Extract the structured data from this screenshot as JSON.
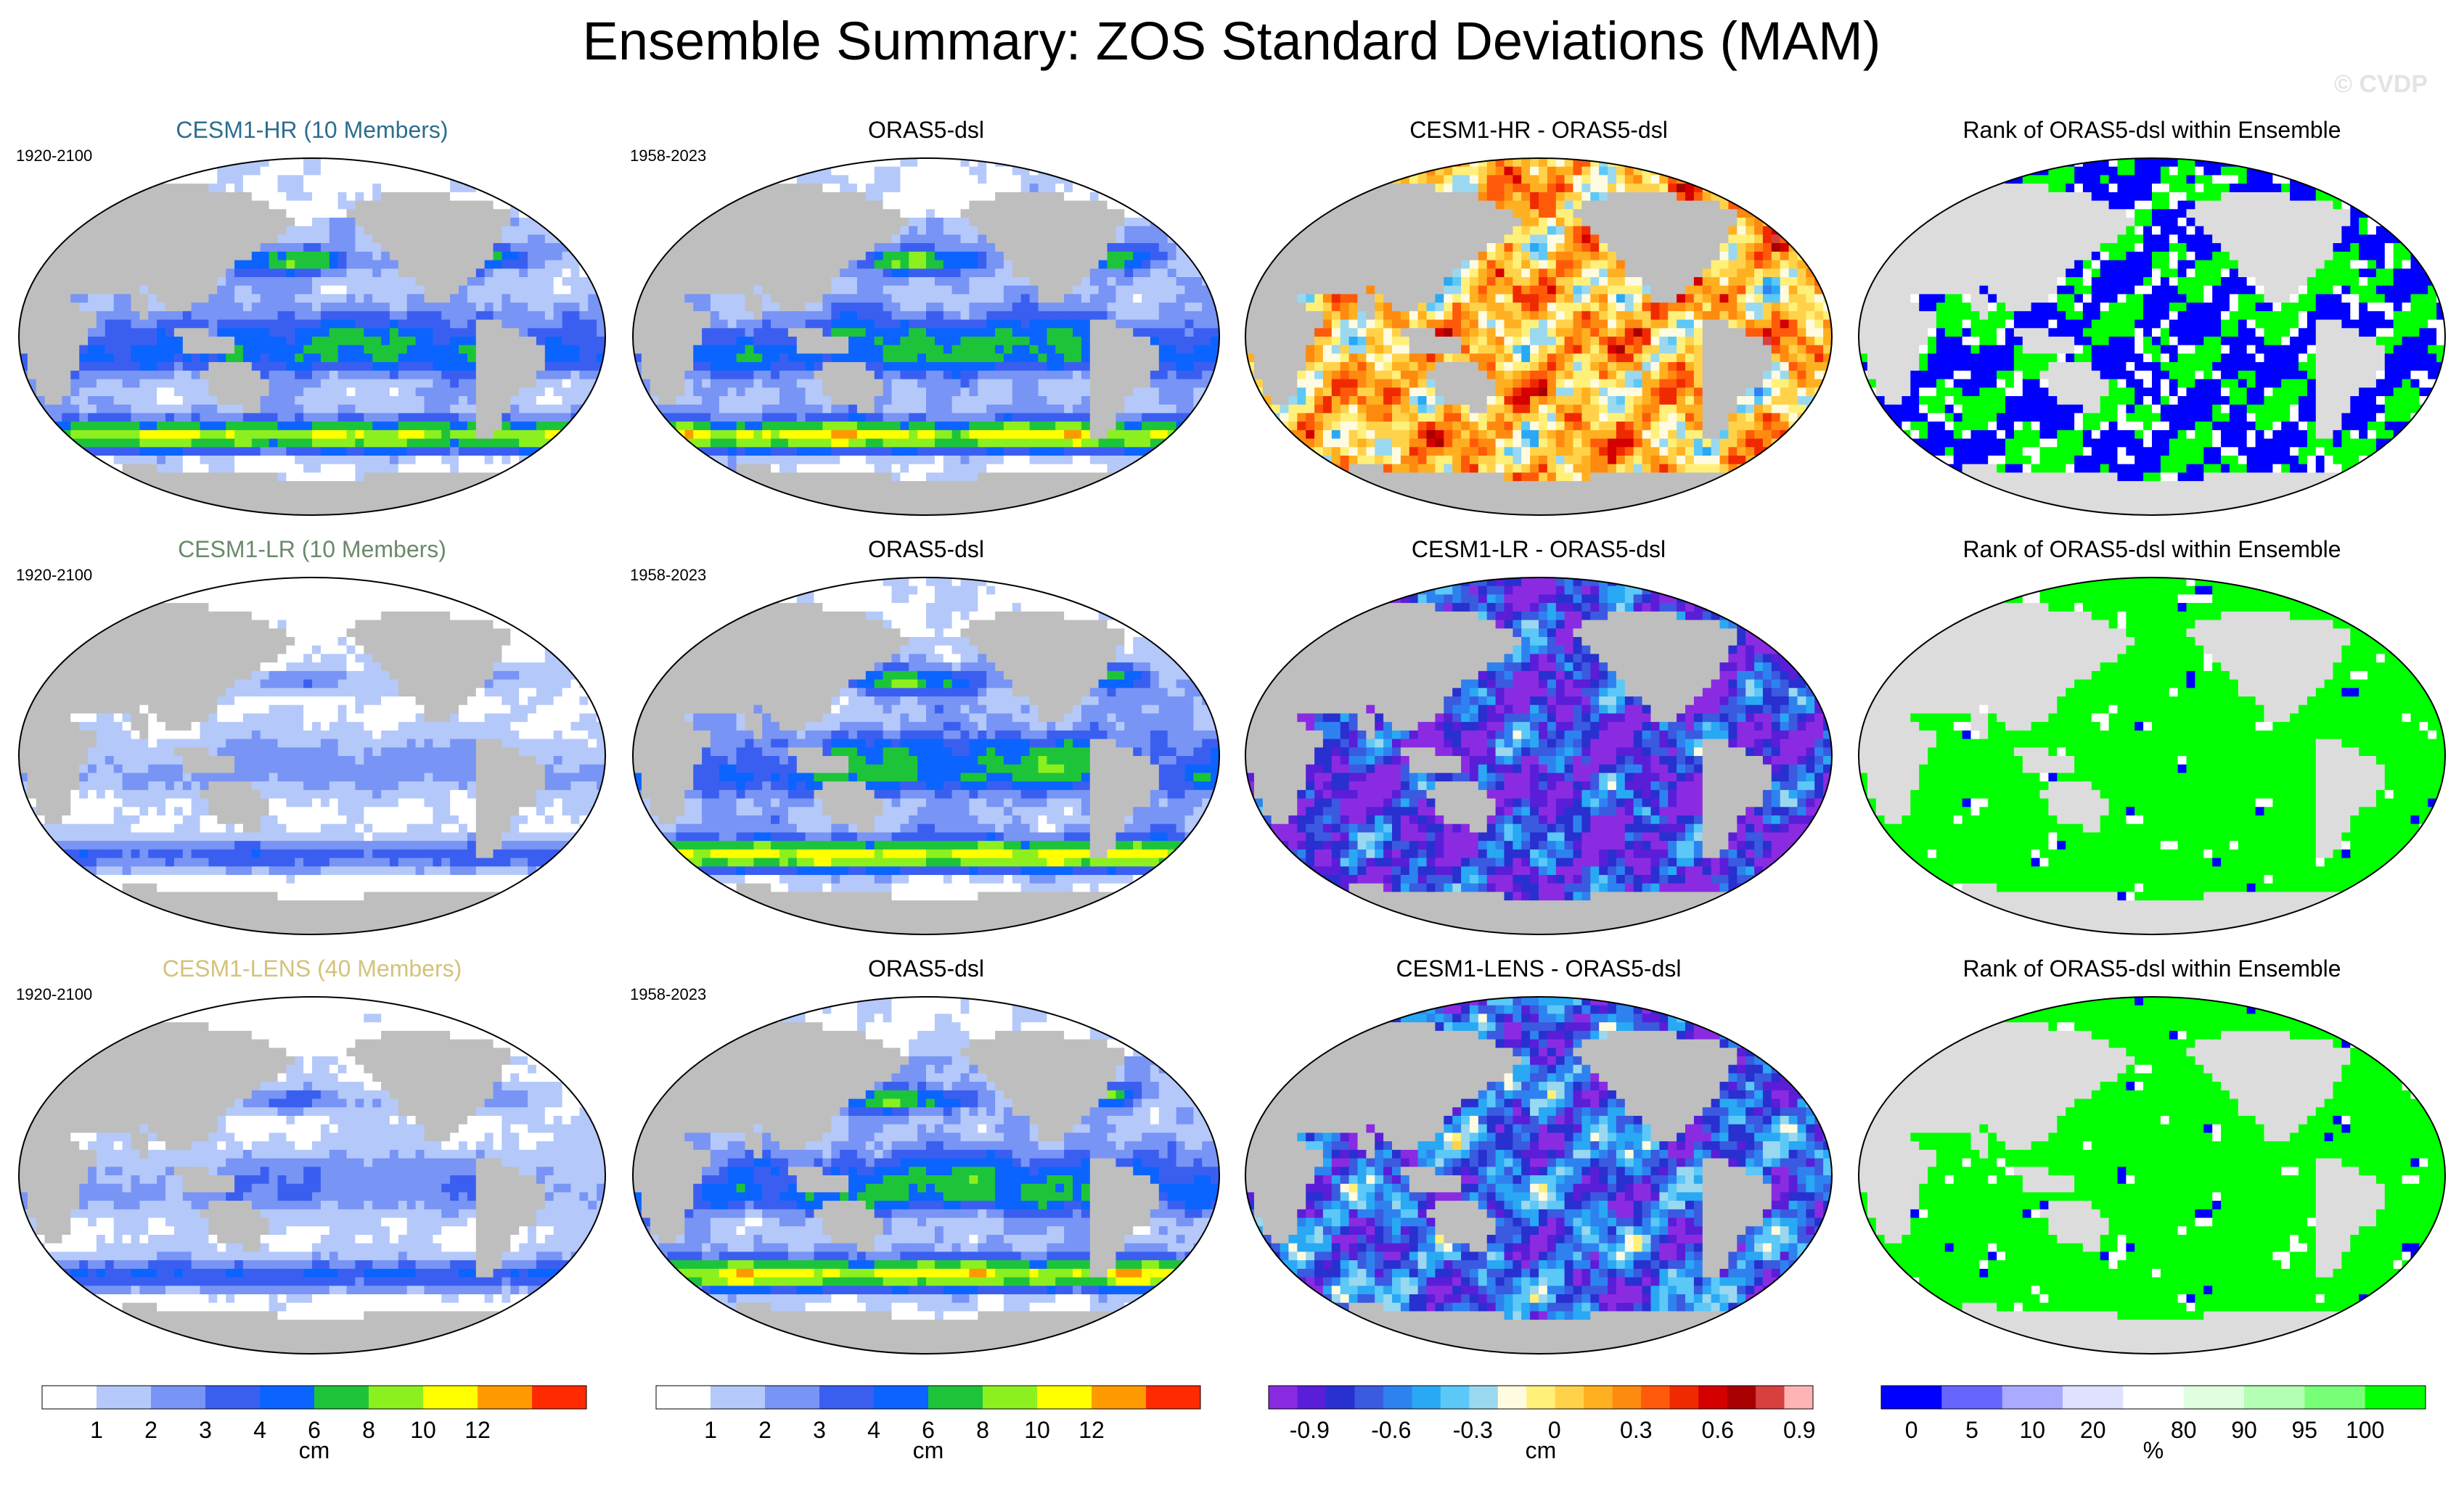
{
  "title": "Ensemble Summary: ZOS Standard Deviations (MAM)",
  "watermark": "© CVDP",
  "chart_data": {
    "type": "heatmap",
    "projection": "Robinson-like global maps",
    "rows": [
      {
        "model_title": "CESM1-HR (10 Members)",
        "model_title_color": "#2c6e8e",
        "model_years": "1920-2100",
        "obs_title": "ORAS5-dsl",
        "obs_years": "1958-2023",
        "diff_title": "CESM1-HR - ORAS5-dsl",
        "rank_title": "Rank of ORAS5-dsl within Ensemble",
        "model_level": 0.55,
        "diff_bias": 0.15,
        "rank_mode": "mixed"
      },
      {
        "model_title": "CESM1-LR (10 Members)",
        "model_title_color": "#6a8a6a",
        "model_years": "1920-2100",
        "obs_title": "ORAS5-dsl",
        "obs_years": "1958-2023",
        "diff_title": "CESM1-LR - ORAS5-dsl",
        "rank_title": "Rank of ORAS5-dsl within Ensemble",
        "model_level": 0.28,
        "diff_bias": -0.75,
        "rank_mode": "high"
      },
      {
        "model_title": "CESM1-LENS (40 Members)",
        "model_title_color": "#d4c27a",
        "model_years": "1920-2100",
        "obs_title": "ORAS5-dsl",
        "obs_years": "1958-2023",
        "diff_title": "CESM1-LENS - ORAS5-dsl",
        "rank_title": "Rank of ORAS5-dsl within Ensemble",
        "model_level": 0.32,
        "diff_bias": -0.6,
        "rank_mode": "high"
      }
    ],
    "colorbars": [
      {
        "unit": "cm",
        "colors": [
          "#ffffff",
          "#b4c8fa",
          "#7894f5",
          "#3a5ff0",
          "#0b64ff",
          "#1dc43a",
          "#8cf01e",
          "#ffff00",
          "#ff9900",
          "#ff2a00"
        ],
        "tick_labels": [
          "1",
          "2",
          "3",
          "4",
          "6",
          "8",
          "10",
          "12"
        ]
      },
      {
        "unit": "cm",
        "colors": [
          "#ffffff",
          "#b4c8fa",
          "#7894f5",
          "#3a5ff0",
          "#0b64ff",
          "#1dc43a",
          "#8cf01e",
          "#ffff00",
          "#ff9900",
          "#ff2a00"
        ],
        "tick_labels": [
          "1",
          "2",
          "3",
          "4",
          "6",
          "8",
          "10",
          "12"
        ]
      },
      {
        "unit": "cm",
        "colors": [
          "#8a2be2",
          "#5a1ed8",
          "#2830d0",
          "#3a5ae0",
          "#2e82f0",
          "#29a8f4",
          "#5cc8f8",
          "#9ad8f0",
          "#fffbe0",
          "#fff07a",
          "#ffd24a",
          "#ffb020",
          "#ff8a10",
          "#ff5a0a",
          "#f02a00",
          "#d40000",
          "#a80000",
          "#d84040",
          "#ffb4b4"
        ],
        "tick_labels": [
          "-0.9",
          "-0.6",
          "-0.3",
          "0",
          "0.3",
          "0.6",
          "0.9"
        ]
      },
      {
        "unit": "%",
        "colors": [
          "#0000ff",
          "#6666ff",
          "#aaaaff",
          "#e0e0ff",
          "#ffffff",
          "#e0ffe0",
          "#b4ffb4",
          "#78ff78",
          "#00ff00"
        ],
        "tick_labels": [
          "0",
          "5",
          "10",
          "20",
          "80",
          "90",
          "95",
          "100"
        ]
      }
    ]
  }
}
